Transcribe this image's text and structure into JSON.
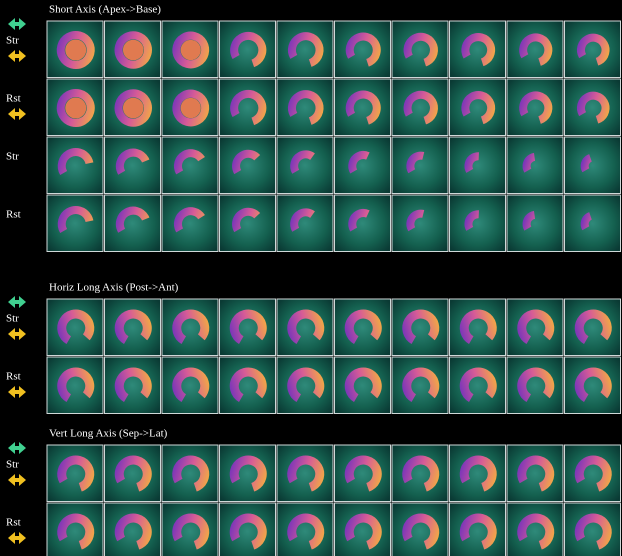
{
  "sections": [
    {
      "title": "Short Axis (Apex->Base)",
      "rows": [
        "Str",
        "Rst",
        "Str",
        "Rst"
      ]
    },
    {
      "title": "Horiz Long Axis (Post->Ant)",
      "rows": [
        "Str",
        "Rst"
      ]
    },
    {
      "title": "Vert Long Axis (Sep->Lat)",
      "rows": [
        "Str",
        "Rst"
      ]
    }
  ]
}
